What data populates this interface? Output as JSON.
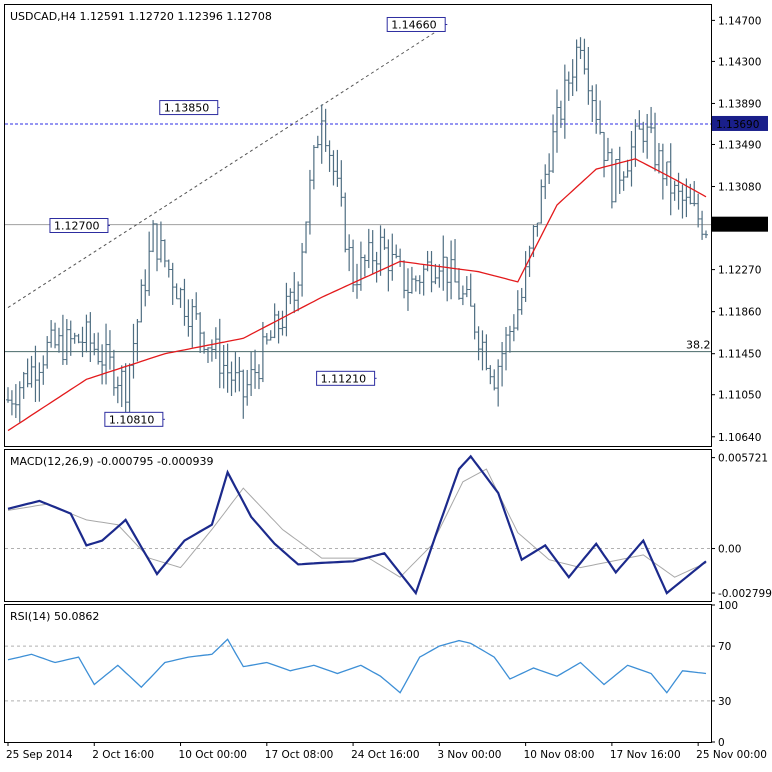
{
  "colors": {
    "bars": "#4f6e82",
    "ma": "#e31a1c",
    "macd": "#1c2a8c",
    "signal": "#a8a8a8",
    "rsi": "#3d8fd6",
    "label_border": "#2d2da0",
    "label_text": "#2d2da0",
    "blue_line": "#2d2de6",
    "grey_line": "#a0a0a0",
    "fib_line": "#4a6a6a",
    "highlight_bg": "#1a1f8a"
  },
  "price_panel": {
    "title": "USDCAD,H4  1.12591 1.12720 1.12396 1.12708",
    "y_ticks": [
      "1.14700",
      "1.14300",
      "1.13890",
      "1.13490",
      "1.13080",
      "1.12270",
      "1.11860",
      "1.11450",
      "1.11050",
      "1.10640"
    ],
    "y_tick_values": [
      1.147,
      1.143,
      1.1389,
      1.1349,
      1.1308,
      1.1227,
      1.1186,
      1.1145,
      1.1105,
      1.1064
    ],
    "current_price": "1.12708",
    "resistance_label": "1.13690",
    "fib_label": "38.2",
    "annotations": [
      "1.14660",
      "1.13850",
      "1.12700",
      "1.11210",
      "1.10810"
    ]
  },
  "macd_panel": {
    "title": "MACD(12,26,9) -0.000795 -0.000939",
    "y_ticks": [
      "0.005721",
      "0.00",
      "-0.002799"
    ]
  },
  "rsi_panel": {
    "title": "RSI(14) 50.0862",
    "y_ticks": [
      "100",
      "70",
      "30",
      "0"
    ]
  },
  "x_labels": [
    "25 Sep 2014",
    "2 Oct 16:00",
    "10 Oct 00:00",
    "17 Oct 08:00",
    "24 Oct 16:00",
    "3 Nov 00:00",
    "10 Nov 08:00",
    "17 Nov 16:00",
    "25 Nov 00:00"
  ],
  "chart_data": [
    {
      "type": "ohlc",
      "title": "USDCAD,H4  1.12591 1.12720 1.12396 1.12708",
      "ylim": [
        1.1055,
        1.1485
      ],
      "x_categories": [
        "25 Sep 2014",
        "2 Oct 16:00",
        "10 Oct 00:00",
        "17 Oct 08:00",
        "24 Oct 16:00",
        "3 Nov 00:00",
        "10 Nov 08:00",
        "17 Nov 16:00",
        "25 Nov 00:00"
      ],
      "anchors": {
        "x_index": [
          0,
          10,
          20,
          30,
          37,
          45,
          53,
          60,
          67,
          73,
          80,
          88,
          95,
          102,
          110,
          118,
          124,
          131,
          138,
          146,
          154,
          162,
          170,
          178
        ],
        "close": [
          1.11,
          1.115,
          1.116,
          1.1115,
          1.126,
          1.1195,
          1.1145,
          1.1105,
          1.116,
          1.12,
          1.1385,
          1.122,
          1.125,
          1.121,
          1.124,
          1.1185,
          1.1125,
          1.12,
          1.134,
          1.1455,
          1.131,
          1.1365,
          1.13,
          1.127
        ]
      },
      "series": [
        {
          "name": "",
          "type": "moving-average",
          "x_index": [
            0,
            20,
            40,
            60,
            80,
            100,
            120,
            130,
            140,
            150,
            160,
            170,
            178
          ],
          "values": [
            1.107,
            1.112,
            1.1145,
            1.116,
            1.12,
            1.1235,
            1.1225,
            1.1215,
            1.129,
            1.1325,
            1.1335,
            1.1315,
            1.1298
          ]
        }
      ],
      "horizontal_lines": [
        {
          "label": "1.13690",
          "value": 1.1369,
          "style": "dashed"
        },
        {
          "label": "1.12708",
          "value": 1.12708,
          "style": "solid"
        },
        {
          "label": "38.2",
          "value": 1.1147,
          "style": "solid"
        }
      ],
      "trendline": {
        "from": [
          0,
          1.119
        ],
        "to": [
          112,
          1.1466
        ],
        "style": "dashed"
      },
      "annotations": [
        {
          "label": "1.14660",
          "x_index": 112,
          "value": 1.1466
        },
        {
          "label": "1.13850",
          "x_index": 54,
          "value": 1.1385
        },
        {
          "label": "1.12700",
          "x_index": 26,
          "value": 1.127
        },
        {
          "label": "1.11210",
          "x_index": 94,
          "value": 1.1121
        },
        {
          "label": "1.10810",
          "x_index": 40,
          "value": 1.1081
        }
      ]
    },
    {
      "type": "line",
      "title": "MACD(12,26,9) -0.000795 -0.000939",
      "ylim": [
        -0.0033,
        0.0062
      ],
      "series": [
        {
          "name": "",
          "x_index": [
            0,
            8,
            16,
            20,
            24,
            30,
            38,
            45,
            52,
            56,
            62,
            68,
            74,
            80,
            88,
            96,
            104,
            110,
            115,
            118,
            125,
            131,
            137,
            143,
            150,
            155,
            162,
            168,
            178
          ],
          "values": [
            0.0025,
            0.003,
            0.0022,
            0.0002,
            0.0005,
            0.0018,
            -0.0016,
            0.0005,
            0.0015,
            0.0048,
            0.002,
            0.0003,
            -0.001,
            -0.0009,
            -0.0008,
            -0.0003,
            -0.0028,
            0.0015,
            0.005,
            0.0058,
            0.0035,
            -0.0007,
            0.0002,
            -0.0018,
            0.0003,
            -0.0015,
            0.0005,
            -0.0028,
            -0.0008
          ]
        },
        {
          "name": "",
          "x_index": [
            0,
            10,
            20,
            28,
            36,
            44,
            52,
            60,
            70,
            80,
            92,
            100,
            108,
            116,
            122,
            130,
            138,
            146,
            154,
            162,
            170,
            178
          ],
          "values": [
            0.0024,
            0.0028,
            0.0018,
            0.0015,
            -0.0006,
            -0.0012,
            0.0012,
            0.0038,
            0.0012,
            -0.0006,
            -0.0006,
            -0.0018,
            0.0002,
            0.0042,
            0.005,
            0.001,
            -0.0007,
            -0.0012,
            -0.0008,
            -0.0004,
            -0.0018,
            -0.0009
          ]
        }
      ]
    },
    {
      "type": "line",
      "title": "RSI(14) 50.0862",
      "ylim": [
        0,
        100
      ],
      "series": [
        {
          "name": "",
          "x_index": [
            0,
            6,
            12,
            18,
            22,
            28,
            34,
            40,
            46,
            52,
            56,
            60,
            66,
            72,
            78,
            84,
            90,
            95,
            100,
            105,
            110,
            115,
            118,
            124,
            128,
            134,
            140,
            146,
            152,
            158,
            164,
            168,
            172,
            178
          ],
          "values": [
            60,
            64,
            58,
            62,
            42,
            56,
            40,
            58,
            62,
            64,
            75,
            55,
            58,
            52,
            56,
            50,
            56,
            48,
            36,
            62,
            70,
            74,
            72,
            62,
            46,
            54,
            48,
            58,
            42,
            56,
            50,
            36,
            52,
            50
          ]
        }
      ],
      "levels": [
        70,
        30
      ]
    }
  ]
}
